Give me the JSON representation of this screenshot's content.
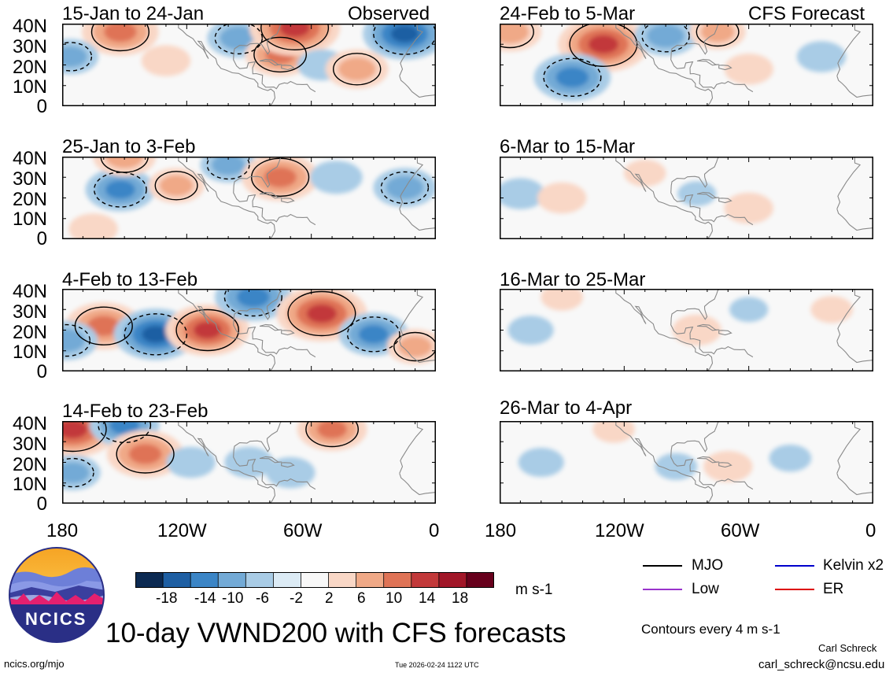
{
  "header": {
    "left_label": "Observed",
    "right_label": "CFS Forecast"
  },
  "chart_data": {
    "type": "heatmap",
    "title": "10-day VWND200 with CFS forecasts",
    "units": "m s-1",
    "xlim": [
      -180,
      0
    ],
    "ylim": [
      0,
      40
    ],
    "x_ticks": [
      "180",
      "120W",
      "60W",
      "0"
    ],
    "y_ticks": [
      "40N",
      "30N",
      "20N",
      "10N",
      "0"
    ],
    "colorbar": {
      "ticks": [
        "-18",
        "-14",
        "-10",
        "-6",
        "-2",
        "2",
        "6",
        "10",
        "14",
        "18"
      ],
      "colors": [
        "#0c2a52",
        "#1e5fa3",
        "#3b85c6",
        "#73aad6",
        "#a9cce6",
        "#dcebf5",
        "#f8f8f8",
        "#f9d7c6",
        "#f0a987",
        "#df7356",
        "#c2393a",
        "#a11628",
        "#67001c"
      ]
    },
    "legend": [
      {
        "label": "MJO",
        "color": "#000000"
      },
      {
        "label": "Kelvin x2",
        "color": "#0000cc"
      },
      {
        "label": "Low",
        "color": "#9933cc"
      },
      {
        "label": "ER",
        "color": "#dd0000"
      }
    ],
    "contour_note": "Contours every 4 m s-1",
    "panels": [
      {
        "title": "15-Jan to 24-Jan",
        "source": "Observed",
        "anomalies": [
          {
            "lon": -152,
            "lat": 36,
            "value": 14
          },
          {
            "lon": -176,
            "lat": 24,
            "value": -8
          },
          {
            "lon": -130,
            "lat": 22,
            "value": 6
          },
          {
            "lon": -95,
            "lat": 33,
            "value": -10
          },
          {
            "lon": -75,
            "lat": 25,
            "value": 12
          },
          {
            "lon": -68,
            "lat": 38,
            "value": 18
          },
          {
            "lon": -55,
            "lat": 20,
            "value": -6
          },
          {
            "lon": -38,
            "lat": 18,
            "value": 10
          },
          {
            "lon": -15,
            "lat": 35,
            "value": -16
          }
        ]
      },
      {
        "title": "25-Jan to 3-Feb",
        "source": "Observed",
        "anomalies": [
          {
            "lon": -152,
            "lat": 24,
            "value": -12
          },
          {
            "lon": -125,
            "lat": 26,
            "value": 8
          },
          {
            "lon": -100,
            "lat": 36,
            "value": -8
          },
          {
            "lon": -75,
            "lat": 30,
            "value": 14
          },
          {
            "lon": -48,
            "lat": 30,
            "value": -7
          },
          {
            "lon": -15,
            "lat": 25,
            "value": -10
          },
          {
            "lon": -165,
            "lat": 5,
            "value": 6
          },
          {
            "lon": -150,
            "lat": 40,
            "value": 10
          }
        ]
      },
      {
        "title": "4-Feb to 13-Feb",
        "source": "Observed",
        "anomalies": [
          {
            "lon": -160,
            "lat": 22,
            "value": 14
          },
          {
            "lon": -135,
            "lat": 18,
            "value": -16
          },
          {
            "lon": -110,
            "lat": 20,
            "value": 16
          },
          {
            "lon": -88,
            "lat": 36,
            "value": -14
          },
          {
            "lon": -55,
            "lat": 28,
            "value": 18
          },
          {
            "lon": -30,
            "lat": 18,
            "value": -12
          },
          {
            "lon": -178,
            "lat": 15,
            "value": -10
          },
          {
            "lon": -10,
            "lat": 12,
            "value": 8
          }
        ]
      },
      {
        "title": "14-Feb to 23-Feb",
        "source": "Observed",
        "anomalies": [
          {
            "lon": -175,
            "lat": 36,
            "value": 18
          },
          {
            "lon": -150,
            "lat": 38,
            "value": -12
          },
          {
            "lon": -140,
            "lat": 24,
            "value": 14
          },
          {
            "lon": -118,
            "lat": 20,
            "value": -6
          },
          {
            "lon": -90,
            "lat": 20,
            "value": -6
          },
          {
            "lon": -50,
            "lat": 36,
            "value": 12
          },
          {
            "lon": -70,
            "lat": 15,
            "value": -6
          },
          {
            "lon": -175,
            "lat": 15,
            "value": -8
          }
        ]
      },
      {
        "title": "24-Feb to 5-Mar",
        "source": "CFS Forecast",
        "anomalies": [
          {
            "lon": -130,
            "lat": 30,
            "value": 18
          },
          {
            "lon": -145,
            "lat": 14,
            "value": -14
          },
          {
            "lon": -100,
            "lat": 34,
            "value": -10
          },
          {
            "lon": -75,
            "lat": 36,
            "value": 8
          },
          {
            "lon": -60,
            "lat": 18,
            "value": 6
          },
          {
            "lon": -25,
            "lat": 24,
            "value": -6
          },
          {
            "lon": -175,
            "lat": 36,
            "value": 10
          }
        ]
      },
      {
        "title": "6-Mar to 15-Mar",
        "source": "CFS Forecast",
        "anomalies": [
          {
            "lon": -170,
            "lat": 22,
            "value": -6
          },
          {
            "lon": -150,
            "lat": 20,
            "value": 6
          },
          {
            "lon": -110,
            "lat": 32,
            "value": 4
          },
          {
            "lon": -85,
            "lat": 22,
            "value": -3
          },
          {
            "lon": -60,
            "lat": 15,
            "value": 6
          }
        ]
      },
      {
        "title": "16-Mar to 25-Mar",
        "source": "CFS Forecast",
        "anomalies": [
          {
            "lon": -165,
            "lat": 20,
            "value": -5
          },
          {
            "lon": -150,
            "lat": 36,
            "value": 4
          },
          {
            "lon": -85,
            "lat": 20,
            "value": 6
          },
          {
            "lon": -60,
            "lat": 30,
            "value": -3
          },
          {
            "lon": -20,
            "lat": 30,
            "value": 4
          }
        ]
      },
      {
        "title": "26-Mar to 4-Apr",
        "source": "CFS Forecast",
        "anomalies": [
          {
            "lon": -160,
            "lat": 20,
            "value": -5
          },
          {
            "lon": -125,
            "lat": 36,
            "value": 4
          },
          {
            "lon": -95,
            "lat": 18,
            "value": -4
          },
          {
            "lon": -70,
            "lat": 18,
            "value": 6
          },
          {
            "lon": -40,
            "lat": 22,
            "value": -4
          }
        ]
      }
    ]
  },
  "logo": {
    "text": "NCICS"
  },
  "footer": {
    "site": "ncics.org/mjo",
    "timestamp": "Tue 2026-02-24 1122 UTC",
    "author": "Carl Schreck",
    "email": "carl_schreck@ncsu.edu"
  }
}
